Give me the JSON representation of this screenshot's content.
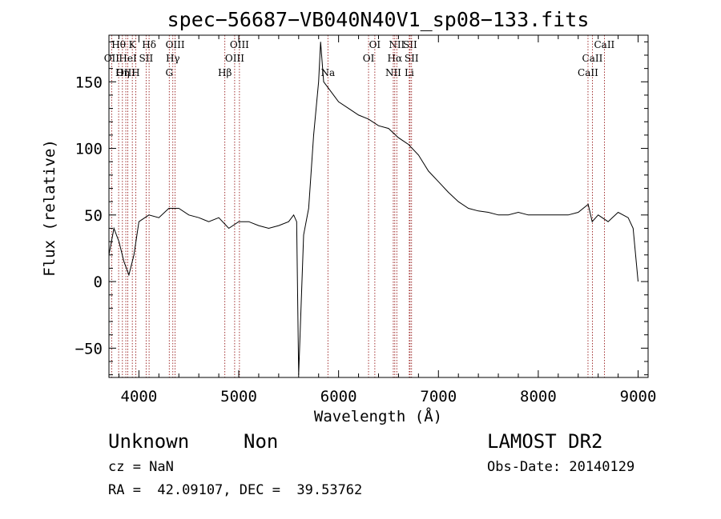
{
  "chart_data": {
    "type": "line",
    "title": "spec−56687−VB040N40V1_sp08−133.fits",
    "xlabel": "Wavelength (Å)",
    "ylabel": "Flux (relative)",
    "xlim": [
      3700,
      9100
    ],
    "ylim": [
      -72,
      185
    ],
    "x_ticks": [
      4000,
      5000,
      6000,
      7000,
      8000,
      9000
    ],
    "y_ticks": [
      -50,
      0,
      50,
      100,
      150
    ],
    "y_tick_labels": [
      "−50",
      "0",
      "50",
      "100",
      "150"
    ],
    "grid": false,
    "series": [
      {
        "x": [
          3700,
          3750,
          3800,
          3850,
          3900,
          3950,
          4000,
          4100,
          4200,
          4300,
          4400,
          4500,
          4600,
          4700,
          4800,
          4900,
          5000,
          5100,
          5200,
          5300,
          5400,
          5500,
          5550,
          5580,
          5600,
          5650,
          5700,
          5750,
          5800,
          5820,
          5850,
          5900,
          5950,
          6000,
          6100,
          6200,
          6300,
          6400,
          6500,
          6600,
          6700,
          6800,
          6900,
          7000,
          7100,
          7200,
          7300,
          7400,
          7500,
          7600,
          7700,
          7800,
          7900,
          8000,
          8100,
          8200,
          8300,
          8400,
          8500,
          8540,
          8600,
          8700,
          8800,
          8900,
          8950,
          9000
        ],
        "y": [
          20,
          40,
          30,
          15,
          5,
          20,
          45,
          50,
          48,
          55,
          55,
          50,
          48,
          45,
          48,
          40,
          45,
          45,
          42,
          40,
          42,
          45,
          50,
          45,
          -70,
          35,
          55,
          110,
          150,
          180,
          150,
          145,
          140,
          135,
          130,
          125,
          122,
          117,
          115,
          108,
          103,
          95,
          83,
          75,
          67,
          60,
          55,
          53,
          52,
          50,
          50,
          52,
          50,
          50,
          50,
          50,
          50,
          52,
          58,
          45,
          50,
          45,
          52,
          48,
          40,
          0
        ]
      }
    ]
  },
  "spectral_lines": [
    {
      "label": "Hθ",
      "wl": 3797,
      "row": 0
    },
    {
      "label": "OII",
      "wl": 3727,
      "row": 1
    },
    {
      "label": "OIII",
      "wl": 3869,
      "row": 2
    },
    {
      "label": "K",
      "wl": 3934,
      "row": 0
    },
    {
      "label": "HeI",
      "wl": 3889,
      "row": 1
    },
    {
      "label": "Hη",
      "wl": 3835,
      "row": 2
    },
    {
      "label": "Hδ",
      "wl": 4102,
      "row": 0
    },
    {
      "label": "SII",
      "wl": 4072,
      "row": 1
    },
    {
      "label": "H",
      "wl": 3968,
      "row": 2
    },
    {
      "label": "OIII",
      "wl": 4363,
      "row": 0
    },
    {
      "label": "Hγ",
      "wl": 4340,
      "row": 1
    },
    {
      "label": "G",
      "wl": 4304,
      "row": 2
    },
    {
      "label": "OIII",
      "wl": 5007,
      "row": 0
    },
    {
      "label": "OIII",
      "wl": 4959,
      "row": 1
    },
    {
      "label": "Hβ",
      "wl": 4861,
      "row": 2
    },
    {
      "label": "Na",
      "wl": 5893,
      "row": 2
    },
    {
      "label": "OI",
      "wl": 6363,
      "row": 0
    },
    {
      "label": "OI",
      "wl": 6300,
      "row": 1
    },
    {
      "label": "NII",
      "wl": 6583,
      "row": 0
    },
    {
      "label": "Hα",
      "wl": 6563,
      "row": 1
    },
    {
      "label": "NII",
      "wl": 6548,
      "row": 2
    },
    {
      "label": "SII",
      "wl": 6716,
      "row": 0
    },
    {
      "label": "SII",
      "wl": 6731,
      "row": 1
    },
    {
      "label": "Li",
      "wl": 6708,
      "row": 2
    },
    {
      "label": "CaII",
      "wl": 8662,
      "row": 0
    },
    {
      "label": "CaII",
      "wl": 8542,
      "row": 1
    },
    {
      "label": "CaII",
      "wl": 8498,
      "row": 2
    }
  ],
  "info": {
    "class_label": "Unknown",
    "subclass_label": "Non",
    "survey": "LAMOST DR2",
    "cz": "cz = NaN",
    "obs_date": "Obs-Date: 20140129",
    "coords": "RA =  42.09107, DEC =  39.53762"
  },
  "colors": {
    "line": "#000000",
    "marker": "#8b0000",
    "text": "#000000"
  }
}
